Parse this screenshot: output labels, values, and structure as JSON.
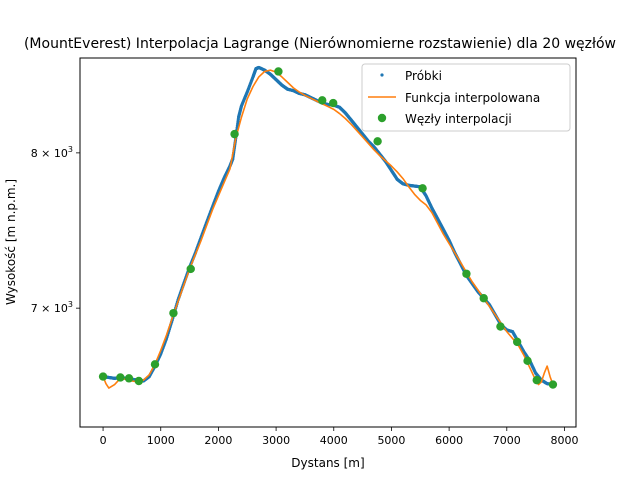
{
  "chart_data": {
    "type": "line",
    "title": "(MountEverest) Interpolacja Lagrange (Nierównomierne rozstawienie) dla 20 węzłów",
    "xlabel": "Dystans [m]",
    "ylabel": "Wysokość [m n.p.m.]",
    "xlim": [
      -400,
      8200
    ],
    "ylim": [
      6320,
      8680
    ],
    "yscale": "log",
    "x_ticks": [
      0,
      1000,
      2000,
      3000,
      4000,
      5000,
      6000,
      7000,
      8000
    ],
    "x_tick_labels": [
      "0",
      "1000",
      "2000",
      "3000",
      "4000",
      "5000",
      "6000",
      "7000",
      "8000"
    ],
    "y_ticks": [
      7000,
      8000
    ],
    "y_tick_labels": [
      "7 × 10",
      "8 × 10"
    ],
    "y_tick_exponent": "3",
    "grid": false,
    "legend_position": "top-right",
    "series": [
      {
        "name": "Próbki",
        "style": "dots",
        "color": "#1f77b4",
        "x": [
          0,
          100,
          200,
          300,
          400,
          500,
          600,
          700,
          800,
          900,
          1000,
          1100,
          1200,
          1300,
          1400,
          1500,
          1600,
          1700,
          1800,
          1900,
          2000,
          2100,
          2200,
          2250,
          2300,
          2350,
          2400,
          2500,
          2600,
          2650,
          2700,
          2800,
          2900,
          3000,
          3100,
          3200,
          3300,
          3400,
          3500,
          3600,
          3700,
          3800,
          3900,
          4000,
          4100,
          4200,
          4300,
          4400,
          4500,
          4600,
          4700,
          4800,
          4900,
          5000,
          5100,
          5200,
          5300,
          5400,
          5500,
          5600,
          5700,
          5800,
          5900,
          6000,
          6100,
          6200,
          6300,
          6400,
          6500,
          6600,
          6700,
          6800,
          6900,
          7000,
          7100,
          7200,
          7300,
          7400,
          7500,
          7600,
          7700,
          7800
        ],
        "y": [
          6600,
          6595,
          6590,
          6595,
          6590,
          6585,
          6580,
          6575,
          6600,
          6660,
          6730,
          6820,
          6930,
          7050,
          7150,
          7250,
          7340,
          7440,
          7540,
          7640,
          7740,
          7830,
          7910,
          7960,
          8100,
          8250,
          8330,
          8430,
          8540,
          8600,
          8610,
          8590,
          8560,
          8520,
          8480,
          8450,
          8440,
          8420,
          8410,
          8390,
          8370,
          8350,
          8340,
          8335,
          8320,
          8280,
          8230,
          8180,
          8130,
          8080,
          8040,
          7990,
          7940,
          7880,
          7820,
          7790,
          7780,
          7775,
          7770,
          7710,
          7630,
          7560,
          7490,
          7420,
          7340,
          7270,
          7200,
          7150,
          7100,
          7060,
          7020,
          6960,
          6900,
          6870,
          6860,
          6800,
          6740,
          6690,
          6620,
          6580,
          6560,
          6555
        ]
      },
      {
        "name": "Funkcja interpolowana",
        "style": "line",
        "color": "#ff7f0e",
        "x": [
          0,
          50,
          100,
          200,
          300,
          400,
          500,
          600,
          700,
          800,
          900,
          1000,
          1100,
          1200,
          1300,
          1400,
          1500,
          1600,
          1700,
          1800,
          1900,
          2000,
          2100,
          2200,
          2300,
          2400,
          2500,
          2600,
          2700,
          2800,
          2900,
          3000,
          3100,
          3200,
          3300,
          3400,
          3500,
          3600,
          3700,
          3800,
          3900,
          4000,
          4100,
          4200,
          4300,
          4400,
          4500,
          4600,
          4700,
          4800,
          4900,
          5000,
          5100,
          5200,
          5300,
          5400,
          5500,
          5600,
          5700,
          5800,
          5900,
          6000,
          6100,
          6200,
          6300,
          6400,
          6500,
          6600,
          6700,
          6800,
          6900,
          7000,
          7100,
          7200,
          7300,
          7400,
          7500,
          7550,
          7600,
          7650,
          7700,
          7750,
          7800
        ],
        "y": [
          6600,
          6560,
          6535,
          6555,
          6590,
          6585,
          6575,
          6570,
          6580,
          6610,
          6670,
          6750,
          6840,
          6940,
          7040,
          7140,
          7240,
          7330,
          7420,
          7520,
          7620,
          7710,
          7800,
          7890,
          8100,
          8250,
          8380,
          8470,
          8540,
          8580,
          8590,
          8575,
          8540,
          8500,
          8460,
          8430,
          8405,
          8385,
          8365,
          8345,
          8325,
          8305,
          8275,
          8240,
          8200,
          8155,
          8110,
          8065,
          8020,
          7980,
          7945,
          7910,
          7870,
          7825,
          7770,
          7720,
          7680,
          7650,
          7600,
          7530,
          7460,
          7400,
          7340,
          7280,
          7220,
          7160,
          7110,
          7060,
          7010,
          6960,
          6910,
          6860,
          6820,
          6780,
          6720,
          6650,
          6580,
          6555,
          6570,
          6620,
          6660,
          6600,
          6555
        ]
      },
      {
        "name": "Węzły interpolacji",
        "style": "markers",
        "color": "#2ca02c",
        "x": [
          0,
          300,
          450,
          620,
          900,
          1220,
          1520,
          2280,
          3040,
          3800,
          3990,
          4760,
          5540,
          6300,
          6600,
          6890,
          7180,
          7360,
          7520,
          7800
        ],
        "y": [
          6600,
          6595,
          6590,
          6575,
          6670,
          6970,
          7240,
          8130,
          8580,
          8370,
          8350,
          8080,
          7760,
          7210,
          7060,
          6890,
          6800,
          6690,
          6580,
          6555
        ]
      }
    ]
  }
}
